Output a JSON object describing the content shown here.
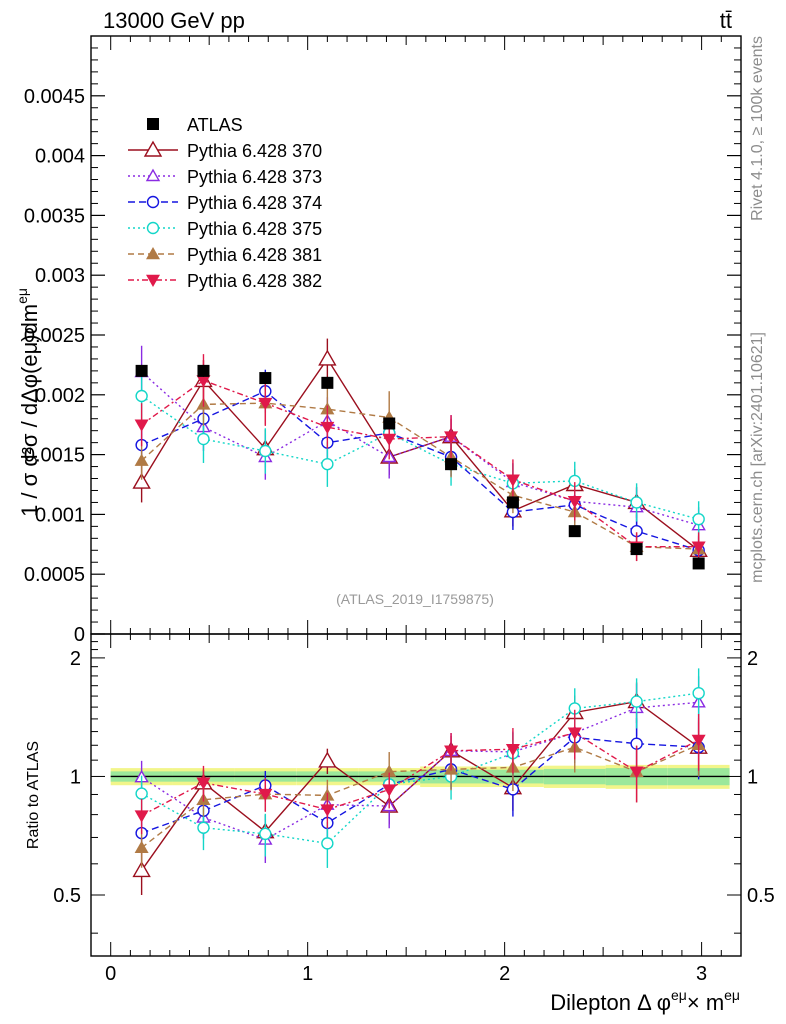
{
  "header": {
    "energy_label": "13000 GeV pp",
    "process_label": "tt̄"
  },
  "side_labels": {
    "rivet": "Rivet 4.1.0, ≥ 100k events",
    "mcplots": "mcplots.cern.ch [arXiv:2401.10621]"
  },
  "chart_data": {
    "type": "scatter",
    "title": "",
    "analysis_label": "(ATLAS_2019_I1759875)",
    "xlabel": "Dilepton Δ φ^eμ × m^eμ",
    "xlabel_main": "Dilepton",
    "xlabel_delta": "Δ",
    "xlabel_phi": "φ",
    "xlabel_sup": "eμ",
    "xlabel_times": "×",
    "xlabel_m": "m",
    "ylabel": "1 / σ  d²σ / dΔφ(eμ) dm^eμ",
    "ylabel_main": "1 / σ  d²σ / dΔφ(eμ)dm",
    "ylabel_sup": "eμ",
    "ratio_ylabel": "Ratio to ATLAS",
    "xlim": [
      -0.1,
      3.2
    ],
    "ylim": [
      0,
      0.005
    ],
    "ratio_ylim": [
      0.35,
      2.3
    ],
    "x_ticks": [
      "0",
      "1",
      "2",
      "3"
    ],
    "y_ticks": [
      "0",
      "0.0005",
      "0.001",
      "0.0015",
      "0.002",
      "0.0025",
      "0.003",
      "0.0035",
      "0.004",
      "0.0045"
    ],
    "ratio_ticks": [
      "0.5",
      "1",
      "2"
    ],
    "x": [
      0.157,
      0.471,
      0.785,
      1.1,
      1.414,
      1.728,
      2.042,
      2.356,
      2.67,
      2.985
    ],
    "data": {
      "name": "ATLAS",
      "values": [
        0.0022,
        0.0022,
        0.00214,
        0.0021,
        0.00176,
        0.00142,
        0.0011,
        0.00086,
        0.00071,
        0.00059
      ],
      "errors": [
        5e-05,
        5e-05,
        5e-05,
        5e-05,
        5e-05,
        4e-05,
        4e-05,
        3e-05,
        3e-05,
        3e-05
      ],
      "band_inner": [
        0.03,
        0.03,
        0.03,
        0.03,
        0.03,
        0.04,
        0.04,
        0.045,
        0.05,
        0.05
      ],
      "band_outer": [
        0.05,
        0.05,
        0.05,
        0.05,
        0.05,
        0.06,
        0.06,
        0.065,
        0.07,
        0.07
      ]
    },
    "series": [
      {
        "name": "Pythia 6.428 370",
        "color": "#9b0f1e",
        "dash": "",
        "marker": "triangle-open",
        "values": [
          0.00127,
          0.00212,
          0.00155,
          0.0023,
          0.00148,
          0.00165,
          0.00103,
          0.00125,
          0.0011,
          0.0007
        ],
        "errors": [
          0.00017,
          0.00017,
          0.00016,
          0.00017,
          0.00015,
          0.00015,
          0.00013,
          0.00013,
          0.00013,
          0.00011
        ]
      },
      {
        "name": "Pythia 6.428 373",
        "color": "#8a2be2",
        "dash": "2,3",
        "marker": "triangle-open-small",
        "values": [
          0.00219,
          0.00173,
          0.00148,
          0.00178,
          0.00148,
          0.00165,
          0.00127,
          0.00111,
          0.00106,
          0.00091
        ],
        "errors": [
          0.00022,
          0.0002,
          0.00019,
          0.0002,
          0.00018,
          0.00018,
          0.00016,
          0.00016,
          0.00016,
          0.00015
        ]
      },
      {
        "name": "Pythia 6.428 374",
        "color": "#1515e0",
        "dash": "7,4",
        "marker": "circle-open",
        "values": [
          0.00158,
          0.0018,
          0.00203,
          0.0016,
          0.00168,
          0.00148,
          0.00102,
          0.00108,
          0.00086,
          0.0007
        ],
        "errors": [
          0.00017,
          0.00017,
          0.00018,
          0.00017,
          0.00016,
          0.00016,
          0.00015,
          0.00015,
          0.00014,
          0.00012
        ]
      },
      {
        "name": "Pythia 6.428 375",
        "color": "#13d6c8",
        "dash": "2,3",
        "marker": "circle-open-cyan",
        "values": [
          0.00199,
          0.00163,
          0.00153,
          0.00142,
          0.00168,
          0.00142,
          0.00126,
          0.00128,
          0.0011,
          0.00096
        ],
        "errors": [
          0.00022,
          0.0002,
          0.00019,
          0.00019,
          0.00018,
          0.00018,
          0.00016,
          0.00016,
          0.00016,
          0.00015
        ]
      },
      {
        "name": "Pythia 6.428 381",
        "color": "#b07a45",
        "dash": "6,4",
        "marker": "triangle-filled",
        "values": [
          0.00145,
          0.00192,
          0.00193,
          0.00188,
          0.00181,
          0.00148,
          0.00116,
          0.00102,
          0.00073,
          0.00071
        ],
        "errors": [
          0.00016,
          0.00018,
          0.00018,
          0.00018,
          0.00022,
          0.00017,
          0.00015,
          0.00014,
          0.00012,
          0.00012
        ]
      },
      {
        "name": "Pythia 6.428 382",
        "color": "#e0194a",
        "dash": "6,3,2,3",
        "marker": "triangle-down-filled",
        "values": [
          0.00175,
          0.00212,
          0.00193,
          0.00173,
          0.00163,
          0.00165,
          0.00129,
          0.00111,
          0.00073,
          0.00073
        ],
        "errors": [
          0.00018,
          0.00022,
          0.00019,
          0.00018,
          0.00017,
          0.00018,
          0.00017,
          0.00016,
          0.00012,
          0.00012
        ]
      }
    ]
  }
}
